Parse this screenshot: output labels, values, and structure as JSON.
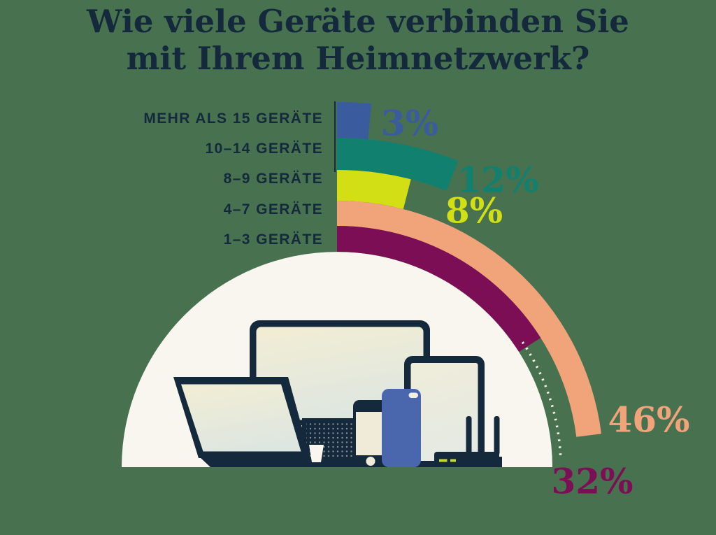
{
  "title": {
    "line1": "Wie viele Geräte verbinden Sie",
    "line2": "mit Ihrem Heimnetzwerk?"
  },
  "chart_data": {
    "type": "bar",
    "variant": "radial-half-rings",
    "title": "Wie viele Geräte verbinden Sie mit Ihrem Heimnetzwerk?",
    "unit": "%",
    "start": "top",
    "direction": "clockwise",
    "total_angle_deg": 180,
    "legend_position": "left",
    "categories": [
      "MEHR ALS 15 GERÄTE",
      "10–14 GERÄTE",
      "8–9 GERÄTE",
      "4–7 GERÄTE",
      "1–3 GERÄTE"
    ],
    "values": [
      3,
      12,
      8,
      46,
      32
    ],
    "series": [
      {
        "label": "MEHR ALS 15 GERÄTE",
        "value": 3,
        "value_label": "3%",
        "color": "#3A5C9E"
      },
      {
        "label": "10–14 GERÄTE",
        "value": 12,
        "value_label": "12%",
        "color": "#12806E"
      },
      {
        "label": "8–9 GERÄTE",
        "value": 8,
        "value_label": "8%",
        "color": "#D2DF14"
      },
      {
        "label": "4–7 GERÄTE",
        "value": 46,
        "value_label": "46%",
        "color": "#F1A47A"
      },
      {
        "label": "1–3 GERÄTE",
        "value": 32,
        "value_label": "32%",
        "color": "#7C0E55"
      }
    ]
  },
  "colors": {
    "background": "#47714F",
    "ink": "#14293C",
    "panel": "#F9F6EF",
    "screen_top": "#F1EDD5",
    "screen_bottom": "#DDE6E0",
    "tablet_screen_top": "#EFECDA",
    "tablet_screen_bottom": "#E4EAE3",
    "device_blue": "#4A67AE",
    "router_light": "#C3D82B",
    "leader_dash": "#F9F6EF"
  },
  "illustration": {
    "description": "Connected home devices inside a cream half-circle",
    "devices": [
      "desktop-monitor",
      "laptop",
      "tablet",
      "smartphone",
      "smartphone-blue",
      "wifi-router",
      "paper-cup"
    ]
  }
}
